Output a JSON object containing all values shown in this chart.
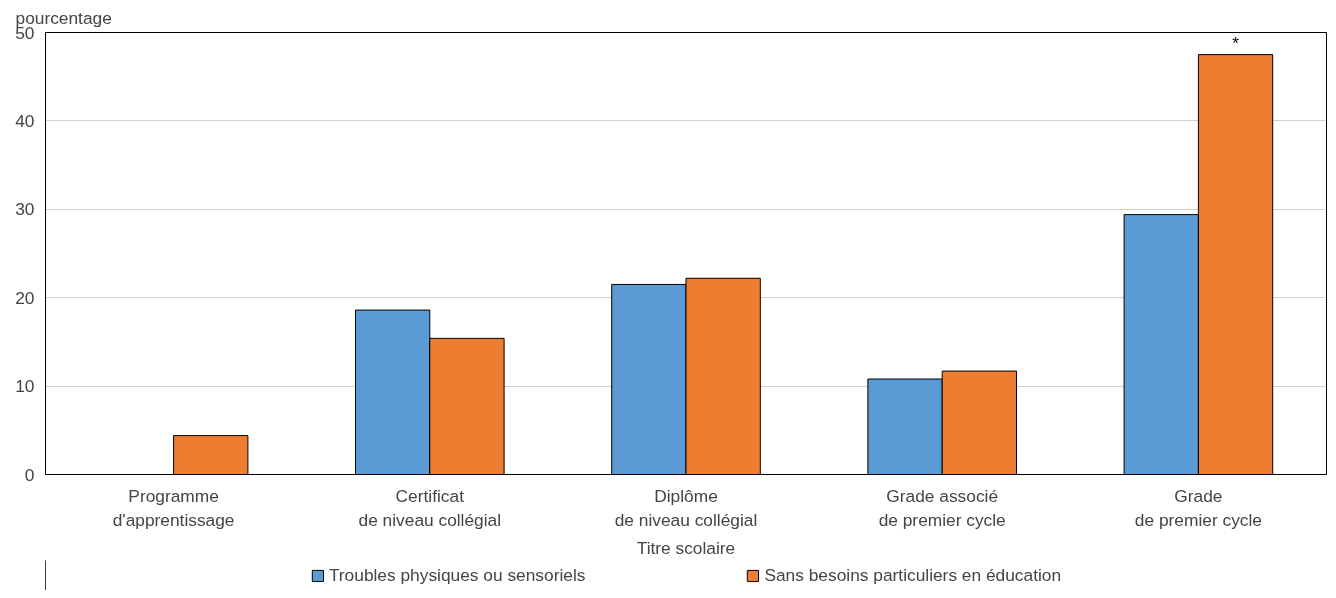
{
  "chart_data": {
    "type": "bar",
    "ylabel": "pourcentage",
    "xlabel": "Titre scolaire",
    "categories": [
      "Programme\nd'apprentissage",
      "Certificat\nde niveau collégial",
      "Diplôme\nde niveau collégial",
      "Grade associé\nde premier cycle",
      "Grade\nde premier cycle"
    ],
    "series": [
      {
        "name": "Troubles physiques ou sensoriels",
        "color": "#5b9bd5",
        "values": [
          null,
          18.6,
          21.5,
          10.8,
          29.4
        ]
      },
      {
        "name": "Sans besoins particuliers en éducation",
        "color": "#ed7d31",
        "values": [
          4.4,
          15.4,
          22.2,
          11.7,
          47.5
        ]
      }
    ],
    "ylim": [
      0,
      50
    ],
    "yticks": [
      0,
      10,
      20,
      30,
      40,
      50
    ],
    "grid": "y",
    "legend": "bottom",
    "annotations": [
      {
        "text": "*",
        "x": "Grade\nde premier cycle",
        "y": 47.5
      }
    ]
  }
}
